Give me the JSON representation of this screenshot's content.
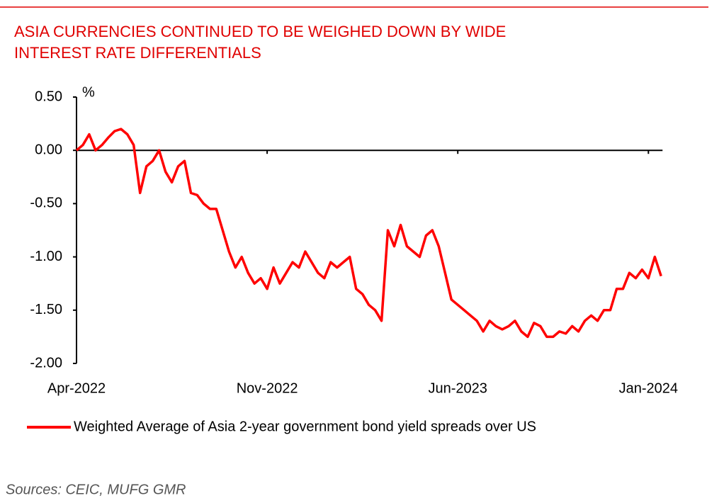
{
  "chart_data": {
    "type": "line",
    "title": [
      "ASIA CURRENCIES CONTINUED TO BE WEIGHED DOWN BY WIDE",
      "INTEREST RATE DIFFERENTIALS"
    ],
    "y_unit": "%",
    "categories": [
      "Apr-2022",
      null,
      null,
      null,
      null,
      null,
      null,
      null,
      null,
      null,
      null,
      null,
      null,
      null,
      null,
      null,
      null,
      null,
      null,
      null,
      null,
      null,
      null,
      null,
      null,
      null,
      null,
      null,
      null,
      null,
      "Nov-2022",
      null,
      null,
      null,
      null,
      null,
      null,
      null,
      null,
      null,
      null,
      null,
      null,
      null,
      null,
      null,
      null,
      null,
      null,
      null,
      null,
      null,
      null,
      null,
      null,
      null,
      null,
      null,
      null,
      null,
      "Jun-2023",
      null,
      null,
      null,
      null,
      null,
      null,
      null,
      null,
      null,
      null,
      null,
      null,
      null,
      null,
      null,
      null,
      null,
      null,
      null,
      null,
      null,
      null,
      null,
      null,
      null,
      null,
      null,
      null,
      null,
      "Jan-2024",
      null,
      null
    ],
    "series": [
      {
        "name": "Weighted Average of Asia 2-year government  bond yield spreads over US",
        "color": "#ff0000",
        "values": [
          0.0,
          0.05,
          0.15,
          0.0,
          0.05,
          0.12,
          0.18,
          0.2,
          0.15,
          0.05,
          -0.4,
          -0.15,
          -0.1,
          0.0,
          -0.2,
          -0.3,
          -0.15,
          -0.1,
          -0.4,
          -0.42,
          -0.5,
          -0.55,
          -0.55,
          -0.75,
          -0.95,
          -1.1,
          -1.0,
          -1.15,
          -1.25,
          -1.2,
          -1.3,
          -1.1,
          -1.25,
          -1.15,
          -1.05,
          -1.1,
          -0.95,
          -1.05,
          -1.15,
          -1.2,
          -1.05,
          -1.1,
          -1.05,
          -1.0,
          -1.3,
          -1.35,
          -1.45,
          -1.5,
          -1.6,
          -0.75,
          -0.9,
          -0.7,
          -0.9,
          -0.95,
          -1.0,
          -0.8,
          -0.75,
          -0.9,
          -1.15,
          -1.4,
          -1.45,
          -1.5,
          -1.55,
          -1.6,
          -1.7,
          -1.6,
          -1.65,
          -1.68,
          -1.65,
          -1.6,
          -1.7,
          -1.75,
          -1.62,
          -1.65,
          -1.75,
          -1.75,
          -1.7,
          -1.72,
          -1.65,
          -1.7,
          -1.6,
          -1.55,
          -1.6,
          -1.5,
          -1.5,
          -1.3,
          -1.3,
          -1.15,
          -1.2,
          -1.12,
          -1.2,
          -1.0,
          -1.18
        ]
      }
    ],
    "ylim": [
      -2,
      0.5
    ],
    "yticks": [
      {
        "value": 0.5,
        "label": "0.50"
      },
      {
        "value": 0,
        "label": "0.00"
      },
      {
        "value": -0.5,
        "label": "-0.50"
      },
      {
        "value": -1,
        "label": "-1.00"
      },
      {
        "value": -1.5,
        "label": "-1.50"
      },
      {
        "value": -2,
        "label": "-2.00"
      }
    ],
    "source": "Sources:  CEIC, MUFG GMR"
  }
}
